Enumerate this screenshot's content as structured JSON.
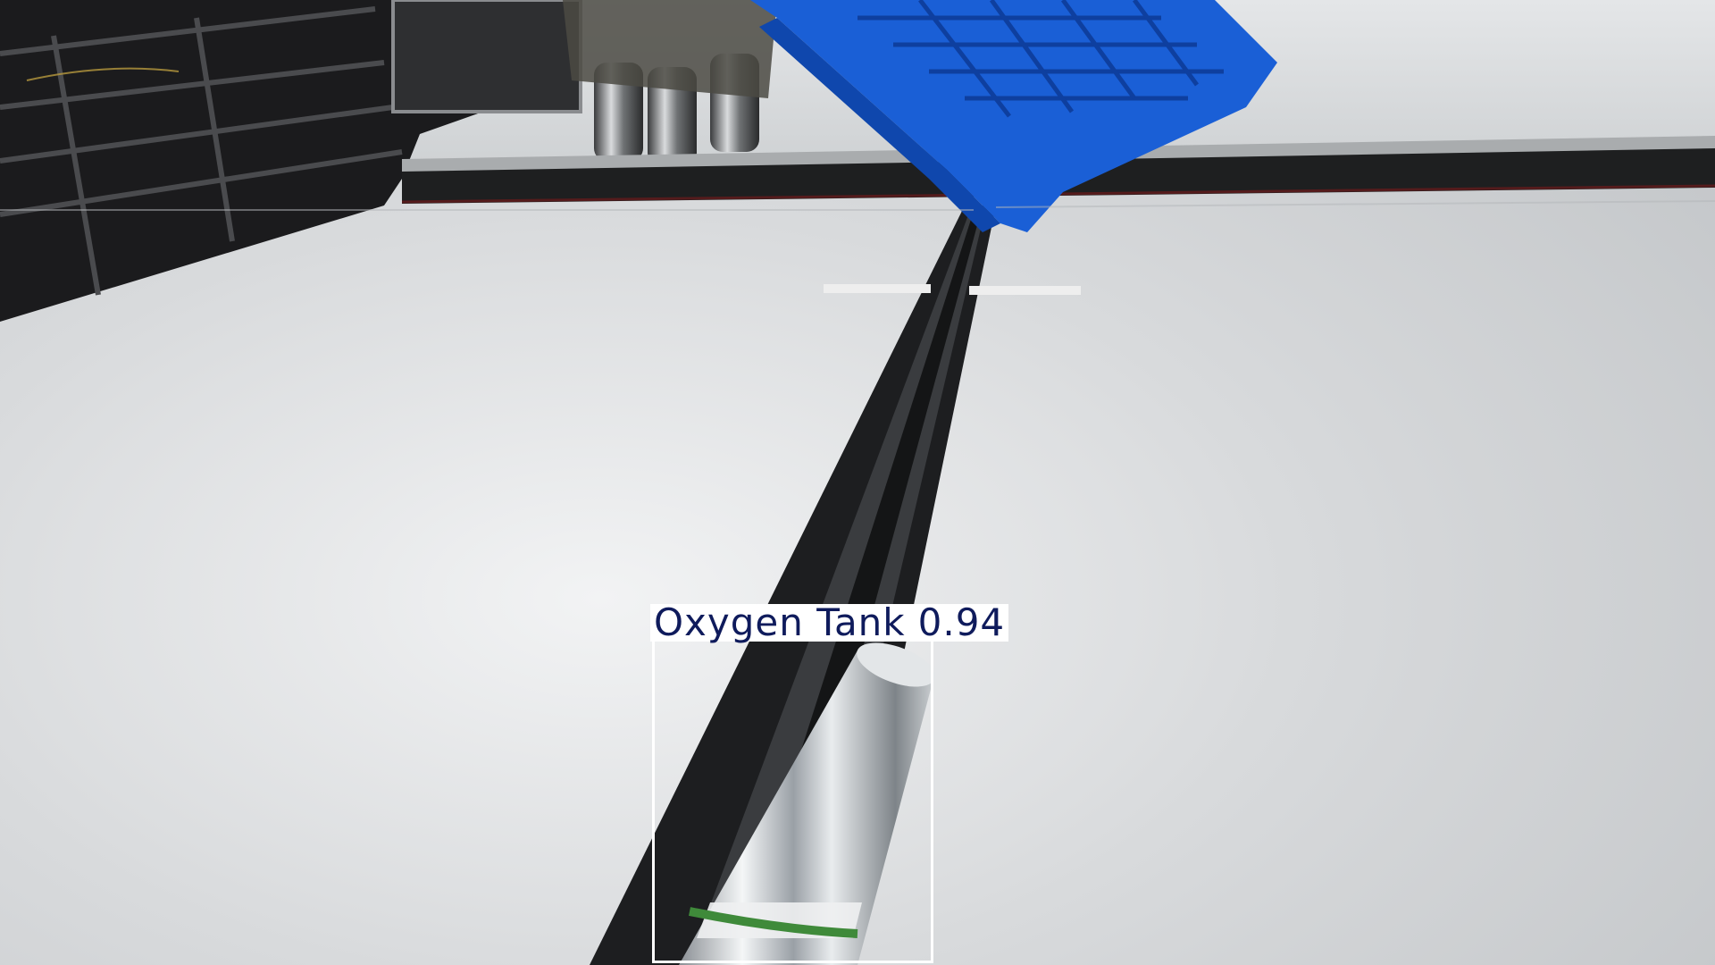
{
  "detection": {
    "class_label": "Oxygen Tank",
    "confidence": "0.94",
    "box_color": "#ffffff",
    "label_text_color": "#0f1b5c"
  },
  "scene_colors": {
    "floor": "#d4d6d8",
    "pallet": "#1a5fd6",
    "rail": "#1e1f20",
    "machinery": "#1c1c1e"
  }
}
